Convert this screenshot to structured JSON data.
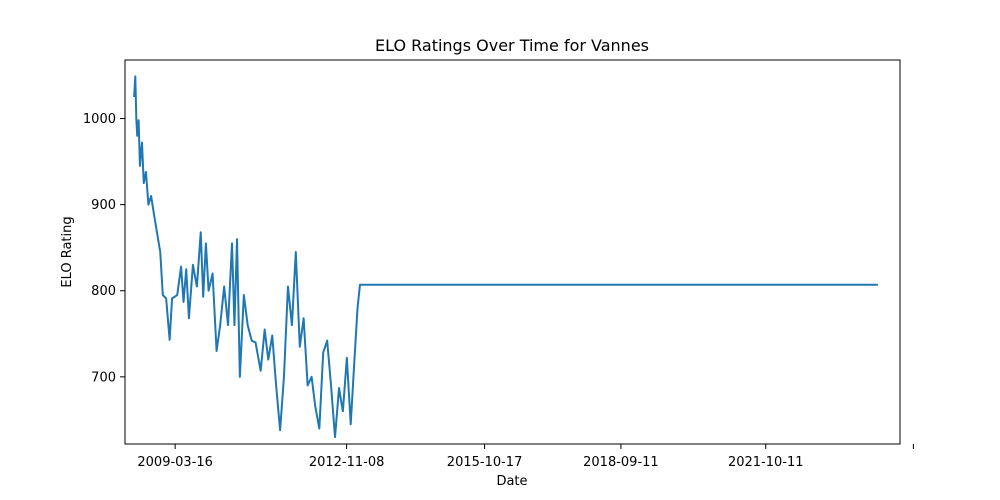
{
  "chart_data": {
    "type": "line",
    "title": "ELO Ratings Over Time for Vannes",
    "xlabel": "Date",
    "ylabel": "ELO Rating",
    "x_ticks": [
      "2009-03-16",
      "2012-11-08",
      "2015-10-17",
      "2018-09-11",
      "2021-10-11"
    ],
    "y_ticks": [
      700,
      800,
      900,
      1000
    ],
    "grid": false,
    "xlim": [
      "2008-02-20",
      "2024-08-20"
    ],
    "ylim": [
      622,
      1068
    ],
    "series": [
      {
        "points": [
          [
            "2008-05-01",
            1025
          ],
          [
            "2008-05-10",
            1049
          ],
          [
            "2008-05-18",
            1000
          ],
          [
            "2008-05-25",
            980
          ],
          [
            "2008-06-05",
            998
          ],
          [
            "2008-06-15",
            945
          ],
          [
            "2008-07-01",
            972
          ],
          [
            "2008-07-15",
            925
          ],
          [
            "2008-08-01",
            938
          ],
          [
            "2008-08-20",
            900
          ],
          [
            "2008-09-10",
            910
          ],
          [
            "2008-10-01",
            890
          ],
          [
            "2008-11-01",
            862
          ],
          [
            "2008-11-20",
            845
          ],
          [
            "2008-12-10",
            795
          ],
          [
            "2009-01-05",
            791
          ],
          [
            "2009-02-01",
            743
          ],
          [
            "2009-02-20",
            791
          ],
          [
            "2009-04-01",
            795
          ],
          [
            "2009-05-01",
            828
          ],
          [
            "2009-05-20",
            787
          ],
          [
            "2009-06-10",
            825
          ],
          [
            "2009-07-01",
            768
          ],
          [
            "2009-08-01",
            830
          ],
          [
            "2009-09-01",
            805
          ],
          [
            "2009-10-01",
            868
          ],
          [
            "2009-10-20",
            793
          ],
          [
            "2009-11-10",
            855
          ],
          [
            "2009-12-01",
            800
          ],
          [
            "2010-01-01",
            820
          ],
          [
            "2010-02-01",
            730
          ],
          [
            "2010-03-01",
            760
          ],
          [
            "2010-04-01",
            805
          ],
          [
            "2010-05-01",
            760
          ],
          [
            "2010-06-01",
            855
          ],
          [
            "2010-06-20",
            760
          ],
          [
            "2010-07-10",
            860
          ],
          [
            "2010-08-01",
            700
          ],
          [
            "2010-09-01",
            795
          ],
          [
            "2010-10-01",
            760
          ],
          [
            "2010-11-01",
            742
          ],
          [
            "2010-12-01",
            740
          ],
          [
            "2011-01-10",
            707
          ],
          [
            "2011-02-10",
            755
          ],
          [
            "2011-03-10",
            720
          ],
          [
            "2011-04-10",
            748
          ],
          [
            "2011-05-10",
            690
          ],
          [
            "2011-06-10",
            638
          ],
          [
            "2011-07-10",
            700
          ],
          [
            "2011-08-10",
            805
          ],
          [
            "2011-09-10",
            760
          ],
          [
            "2011-10-10",
            845
          ],
          [
            "2011-11-10",
            735
          ],
          [
            "2011-12-10",
            768
          ],
          [
            "2012-01-10",
            690
          ],
          [
            "2012-02-10",
            700
          ],
          [
            "2012-03-10",
            665
          ],
          [
            "2012-04-10",
            640
          ],
          [
            "2012-05-10",
            728
          ],
          [
            "2012-06-10",
            742
          ],
          [
            "2012-07-10",
            690
          ],
          [
            "2012-08-10",
            630
          ],
          [
            "2012-09-10",
            687
          ],
          [
            "2012-10-10",
            660
          ],
          [
            "2012-11-10",
            722
          ],
          [
            "2012-12-10",
            645
          ],
          [
            "2013-01-10",
            725
          ],
          [
            "2013-02-01",
            780
          ],
          [
            "2013-02-20",
            807
          ],
          [
            "2024-03-01",
            807
          ]
        ]
      }
    ]
  }
}
